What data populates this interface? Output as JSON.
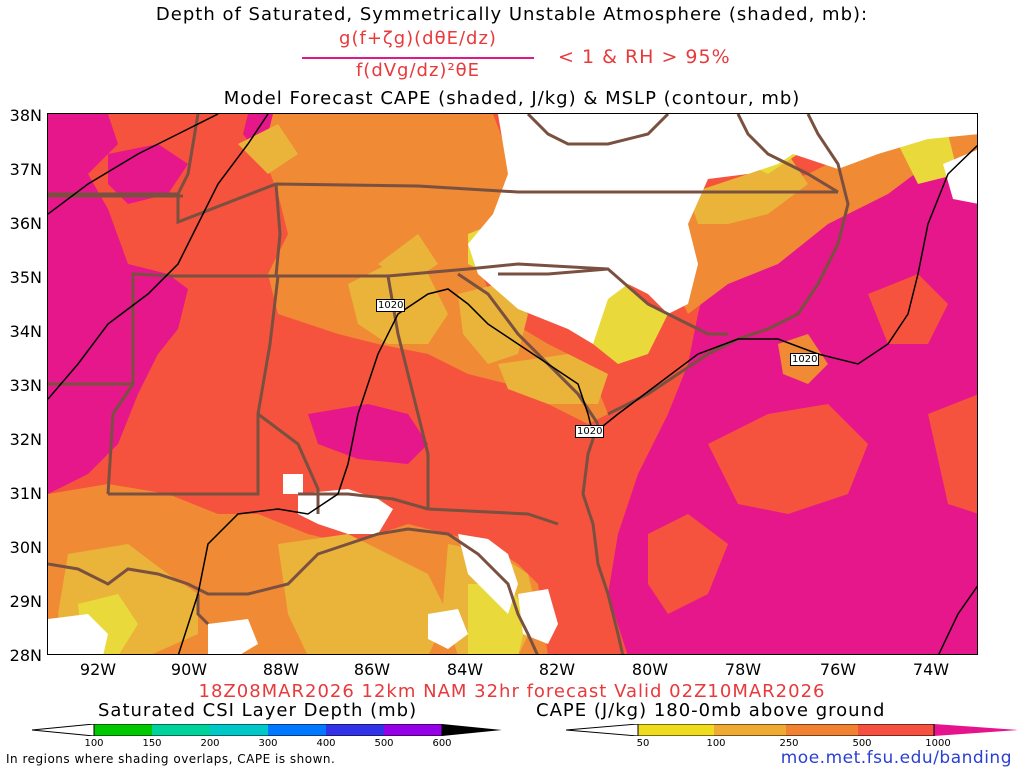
{
  "titles": {
    "line1": "Depth of Saturated, Symmetrically Unstable Atmosphere (shaded, mb):",
    "numerator": "g(f+ζg)(dθE/dz)",
    "denominator": "f(dVg/dz)²θE",
    "condition": "< 1 & RH > 95%",
    "line3": "Model Forecast CAPE (shaded, J/kg) & MSLP (contour, mb)"
  },
  "axes": {
    "lat_labels": [
      "38N",
      "37N",
      "36N",
      "35N",
      "34N",
      "33N",
      "32N",
      "31N",
      "30N",
      "29N",
      "28N"
    ],
    "lon_labels": [
      "92W",
      "90W",
      "88W",
      "86W",
      "84W",
      "82W",
      "80W",
      "78W",
      "76W",
      "74W"
    ]
  },
  "isobars": [
    {
      "label": "1020"
    },
    {
      "label": "1020"
    },
    {
      "label": "1020"
    }
  ],
  "valid_line": "18Z08MAR2026 12km NAM 32hr forecast Valid 02Z10MAR2026",
  "legend_csi": {
    "title": "Saturated CSI Layer Depth (mb)",
    "ticks": [
      "100",
      "150",
      "200",
      "300",
      "400",
      "500",
      "600"
    ],
    "colors": [
      "#00c800",
      "#00d29b",
      "#00c8c8",
      "#0078ff",
      "#3232e6",
      "#9600e6",
      "#000000"
    ]
  },
  "legend_cape": {
    "title": "CAPE (J/kg) 180-0mb above ground",
    "ticks": [
      "50",
      "100",
      "250",
      "500",
      "1000"
    ],
    "colors": [
      "#f0dc1e",
      "#eeaa32",
      "#f08232",
      "#f55040",
      "#e6148c"
    ]
  },
  "note": "In regions where shading overlaps, CAPE is shown.",
  "url": "moe.met.fsu.edu/banding",
  "colors": {
    "cape_50": "#e9d93a",
    "cape_100": "#eab43a",
    "cape_250": "#f08a34",
    "cape_500": "#f5533d",
    "cape_1000": "#e5178b",
    "borders": "#7a5040",
    "text_red": "#e8393b"
  }
}
